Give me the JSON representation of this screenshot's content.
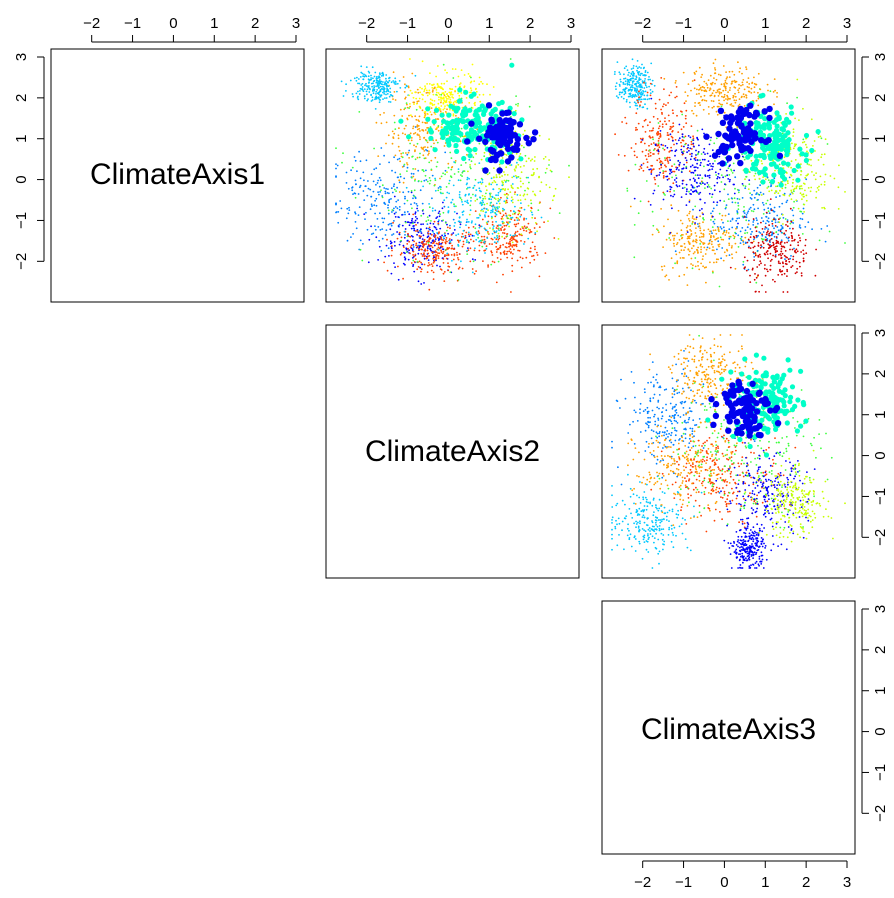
{
  "chart_data": {
    "type": "scatter",
    "kind": "pairs-scatterplot-matrix",
    "variables": [
      "ClimateAxis1",
      "ClimateAxis2",
      "ClimateAxis3"
    ],
    "axis_range": [
      -2.8,
      3.0
    ],
    "ticks": [
      -2,
      -1,
      0,
      1,
      2,
      3
    ],
    "tick_labels": [
      "−2",
      "−1",
      "0",
      "1",
      "2",
      "3"
    ],
    "layout": "upper-triangle",
    "grid": false,
    "point_palette": [
      "#0000ff",
      "#0080ff",
      "#00c8ff",
      "#00ffc8",
      "#40ff40",
      "#c8ff00",
      "#ffff00",
      "#ffa000",
      "#ff4000",
      "#d00000"
    ],
    "highlight_color": "#0000ee",
    "panels": [
      {
        "name": "ClimateAxis1 vs ClimateAxis2",
        "x_var": "ClimateAxis2",
        "y_var": "ClimateAxis1",
        "highlight_cluster": {
          "center": [
            1.3,
            1.05
          ],
          "spread": [
            0.3,
            0.3
          ],
          "color": "#0000ee"
        },
        "secondary_cluster": {
          "center": [
            0.5,
            1.3
          ],
          "spread": [
            0.55,
            0.35
          ],
          "color": "#00ffc8"
        },
        "clouds": [
          {
            "center": [
              -1.5,
              -0.5
            ],
            "spread": [
              0.7,
              0.6
            ],
            "color": "#0080ff"
          },
          {
            "center": [
              -0.7,
              -1.5
            ],
            "spread": [
              0.5,
              0.4
            ],
            "color": "#0000ff"
          },
          {
            "center": [
              -0.6,
              1.2
            ],
            "spread": [
              0.5,
              0.5
            ],
            "color": "#ffa000"
          },
          {
            "center": [
              -0.3,
              -1.7
            ],
            "spread": [
              0.5,
              0.3
            ],
            "color": "#ff4000"
          },
          {
            "center": [
              1.5,
              -1.4
            ],
            "spread": [
              0.4,
              0.4
            ],
            "color": "#ff4000"
          },
          {
            "center": [
              0.2,
              0.0
            ],
            "spread": [
              1.1,
              1.0
            ],
            "color": "#40ff40"
          },
          {
            "center": [
              1.5,
              0.0
            ],
            "spread": [
              0.5,
              0.7
            ],
            "color": "#c8ff00"
          },
          {
            "center": [
              0.8,
              -0.8
            ],
            "spread": [
              0.6,
              0.5
            ],
            "color": "#00c8ff"
          },
          {
            "center": [
              -1.8,
              2.3
            ],
            "spread": [
              0.3,
              0.2
            ],
            "color": "#00c8ff"
          },
          {
            "center": [
              0.0,
              2.0
            ],
            "spread": [
              0.4,
              0.3
            ],
            "color": "#ffff00"
          }
        ]
      },
      {
        "name": "ClimateAxis1 vs ClimateAxis3",
        "x_var": "ClimateAxis3",
        "y_var": "ClimateAxis1",
        "highlight_cluster": {
          "center": [
            0.4,
            1.1
          ],
          "spread": [
            0.3,
            0.3
          ],
          "color": "#0000ee"
        },
        "secondary_cluster": {
          "center": [
            1.1,
            0.9
          ],
          "spread": [
            0.4,
            0.45
          ],
          "color": "#00ffc8"
        },
        "clouds": [
          {
            "center": [
              -2.2,
              2.3
            ],
            "spread": [
              0.2,
              0.25
            ],
            "color": "#00c8ff"
          },
          {
            "center": [
              -1.5,
              1.0
            ],
            "spread": [
              0.4,
              0.6
            ],
            "color": "#ff4000"
          },
          {
            "center": [
              0.2,
              -0.2
            ],
            "spread": [
              1.1,
              1.0
            ],
            "color": "#40ff40"
          },
          {
            "center": [
              0.8,
              -1.0
            ],
            "spread": [
              0.6,
              0.5
            ],
            "color": "#0080ff"
          },
          {
            "center": [
              -0.6,
              -1.5
            ],
            "spread": [
              0.5,
              0.4
            ],
            "color": "#ffa000"
          },
          {
            "center": [
              -0.8,
              0.2
            ],
            "spread": [
              0.5,
              0.5
            ],
            "color": "#0000ff"
          },
          {
            "center": [
              1.6,
              0.3
            ],
            "spread": [
              0.5,
              0.6
            ],
            "color": "#c8ff00"
          },
          {
            "center": [
              0.0,
              2.2
            ],
            "spread": [
              0.5,
              0.3
            ],
            "color": "#ffa000"
          },
          {
            "center": [
              1.3,
              -1.8
            ],
            "spread": [
              0.4,
              0.4
            ],
            "color": "#d00000"
          }
        ]
      },
      {
        "name": "ClimateAxis2 vs ClimateAxis3",
        "x_var": "ClimateAxis3",
        "y_var": "ClimateAxis2",
        "highlight_cluster": {
          "center": [
            0.5,
            1.2
          ],
          "spread": [
            0.3,
            0.35
          ],
          "color": "#0000ee"
        },
        "secondary_cluster": {
          "center": [
            1.0,
            1.3
          ],
          "spread": [
            0.45,
            0.45
          ],
          "color": "#00ffc8"
        },
        "clouds": [
          {
            "center": [
              -1.4,
              0.9
            ],
            "spread": [
              0.5,
              0.6
            ],
            "color": "#0080ff"
          },
          {
            "center": [
              -1.0,
              -0.3
            ],
            "spread": [
              0.6,
              0.5
            ],
            "color": "#ffa000"
          },
          {
            "center": [
              0.0,
              -0.5
            ],
            "spread": [
              0.7,
              0.5
            ],
            "color": "#ff4000"
          },
          {
            "center": [
              0.5,
              0.2
            ],
            "spread": [
              0.9,
              0.9
            ],
            "color": "#40ff40"
          },
          {
            "center": [
              1.0,
              -1.0
            ],
            "spread": [
              0.5,
              0.5
            ],
            "color": "#0000ff"
          },
          {
            "center": [
              -1.8,
              -1.6
            ],
            "spread": [
              0.5,
              0.4
            ],
            "color": "#00c8ff"
          },
          {
            "center": [
              0.6,
              -2.3
            ],
            "spread": [
              0.2,
              0.25
            ],
            "color": "#0000ff"
          },
          {
            "center": [
              1.7,
              -1.2
            ],
            "spread": [
              0.4,
              0.4
            ],
            "color": "#c8ff00"
          },
          {
            "center": [
              -0.3,
              2.0
            ],
            "spread": [
              0.5,
              0.4
            ],
            "color": "#ffa000"
          }
        ]
      }
    ]
  }
}
